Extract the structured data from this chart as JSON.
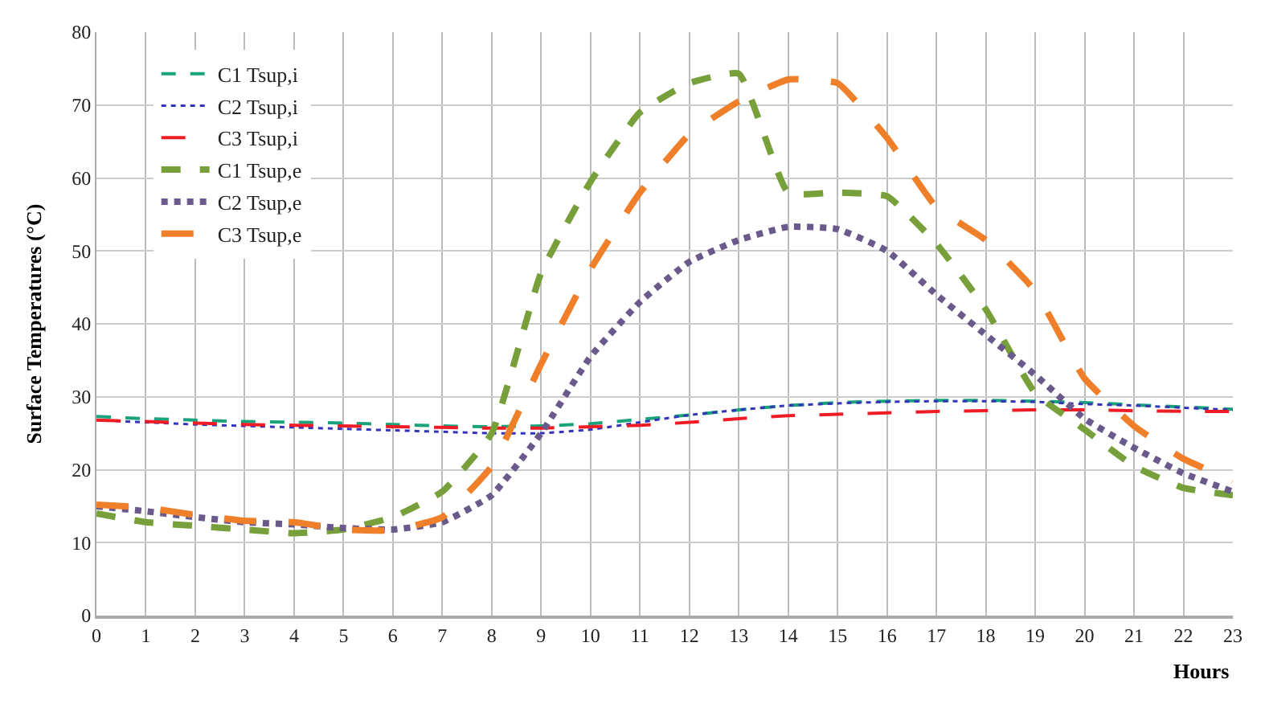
{
  "chart_data": {
    "type": "line",
    "xlabel": "Hours",
    "ylabel": "Surface Temperatures (°C)",
    "x": [
      0,
      1,
      2,
      3,
      4,
      5,
      6,
      7,
      8,
      9,
      10,
      11,
      12,
      13,
      14,
      15,
      16,
      17,
      18,
      19,
      20,
      21,
      22,
      23
    ],
    "xlim": [
      0,
      23
    ],
    "xticks": [
      0,
      1,
      2,
      3,
      4,
      5,
      6,
      7,
      8,
      9,
      10,
      11,
      12,
      13,
      14,
      15,
      16,
      17,
      18,
      19,
      20,
      21,
      22,
      23
    ],
    "ylim": [
      0,
      80
    ],
    "yticks": [
      0,
      10,
      20,
      30,
      40,
      50,
      60,
      70,
      80
    ],
    "grid": true,
    "legend": "top left",
    "marker": "none",
    "series": [
      {
        "name": "C1 Tsup,i",
        "color": "#1aa37a",
        "line_style": "dashed",
        "values": [
          27.3,
          27.0,
          26.8,
          26.6,
          26.5,
          26.4,
          26.2,
          26.0,
          25.9,
          26.0,
          26.3,
          26.9,
          27.5,
          28.2,
          28.8,
          29.2,
          29.4,
          29.5,
          29.5,
          29.4,
          29.2,
          28.9,
          28.6,
          28.3
        ]
      },
      {
        "name": "C2 Tsup,i",
        "color": "#3333bb",
        "line_style": "dotted",
        "values": [
          26.8,
          26.5,
          26.2,
          26.0,
          25.8,
          25.6,
          25.4,
          25.2,
          25.0,
          25.0,
          25.5,
          26.5,
          27.5,
          28.2,
          28.8,
          29.1,
          29.3,
          29.4,
          29.4,
          29.3,
          29.0,
          28.8,
          28.5,
          28.2
        ]
      },
      {
        "name": "C3 Tsup,i",
        "color": "#ee1c24",
        "line_style": "dashed",
        "values": [
          26.8,
          26.6,
          26.4,
          26.2,
          26.1,
          26.0,
          25.9,
          25.8,
          25.7,
          25.7,
          25.9,
          26.1,
          26.5,
          27.0,
          27.4,
          27.6,
          27.8,
          28.0,
          28.1,
          28.2,
          28.2,
          28.1,
          28.0,
          28.0
        ]
      },
      {
        "name": "C1 Tsup,e",
        "color": "#77a03a",
        "line_style": "dashed",
        "values": [
          14.0,
          12.8,
          12.3,
          11.8,
          11.3,
          11.8,
          13.5,
          17.0,
          25.0,
          47.0,
          59.5,
          69.0,
          73.0,
          74.3,
          58.0,
          58.0,
          57.5,
          51.0,
          42.0,
          30.5,
          25.5,
          20.5,
          17.5,
          16.5
        ]
      },
      {
        "name": "C2 Tsup,e",
        "color": "#6a5a8c",
        "line_style": "dotted",
        "values": [
          15.0,
          14.3,
          13.5,
          12.8,
          12.5,
          12.0,
          11.8,
          12.8,
          16.5,
          25.0,
          35.5,
          43.0,
          48.5,
          51.5,
          53.3,
          53.0,
          50.0,
          44.0,
          38.5,
          33.0,
          27.0,
          23.0,
          19.5,
          17.0
        ]
      },
      {
        "name": "C3 Tsup,e",
        "color": "#f07f2a",
        "line_style": "dashed",
        "values": [
          15.2,
          14.8,
          13.8,
          13.0,
          12.8,
          11.8,
          11.7,
          13.5,
          20.5,
          34.5,
          47.5,
          58.0,
          66.0,
          70.5,
          73.5,
          73.0,
          65.5,
          56.0,
          51.5,
          44.5,
          32.5,
          26.0,
          21.5,
          18.5
        ]
      }
    ]
  }
}
